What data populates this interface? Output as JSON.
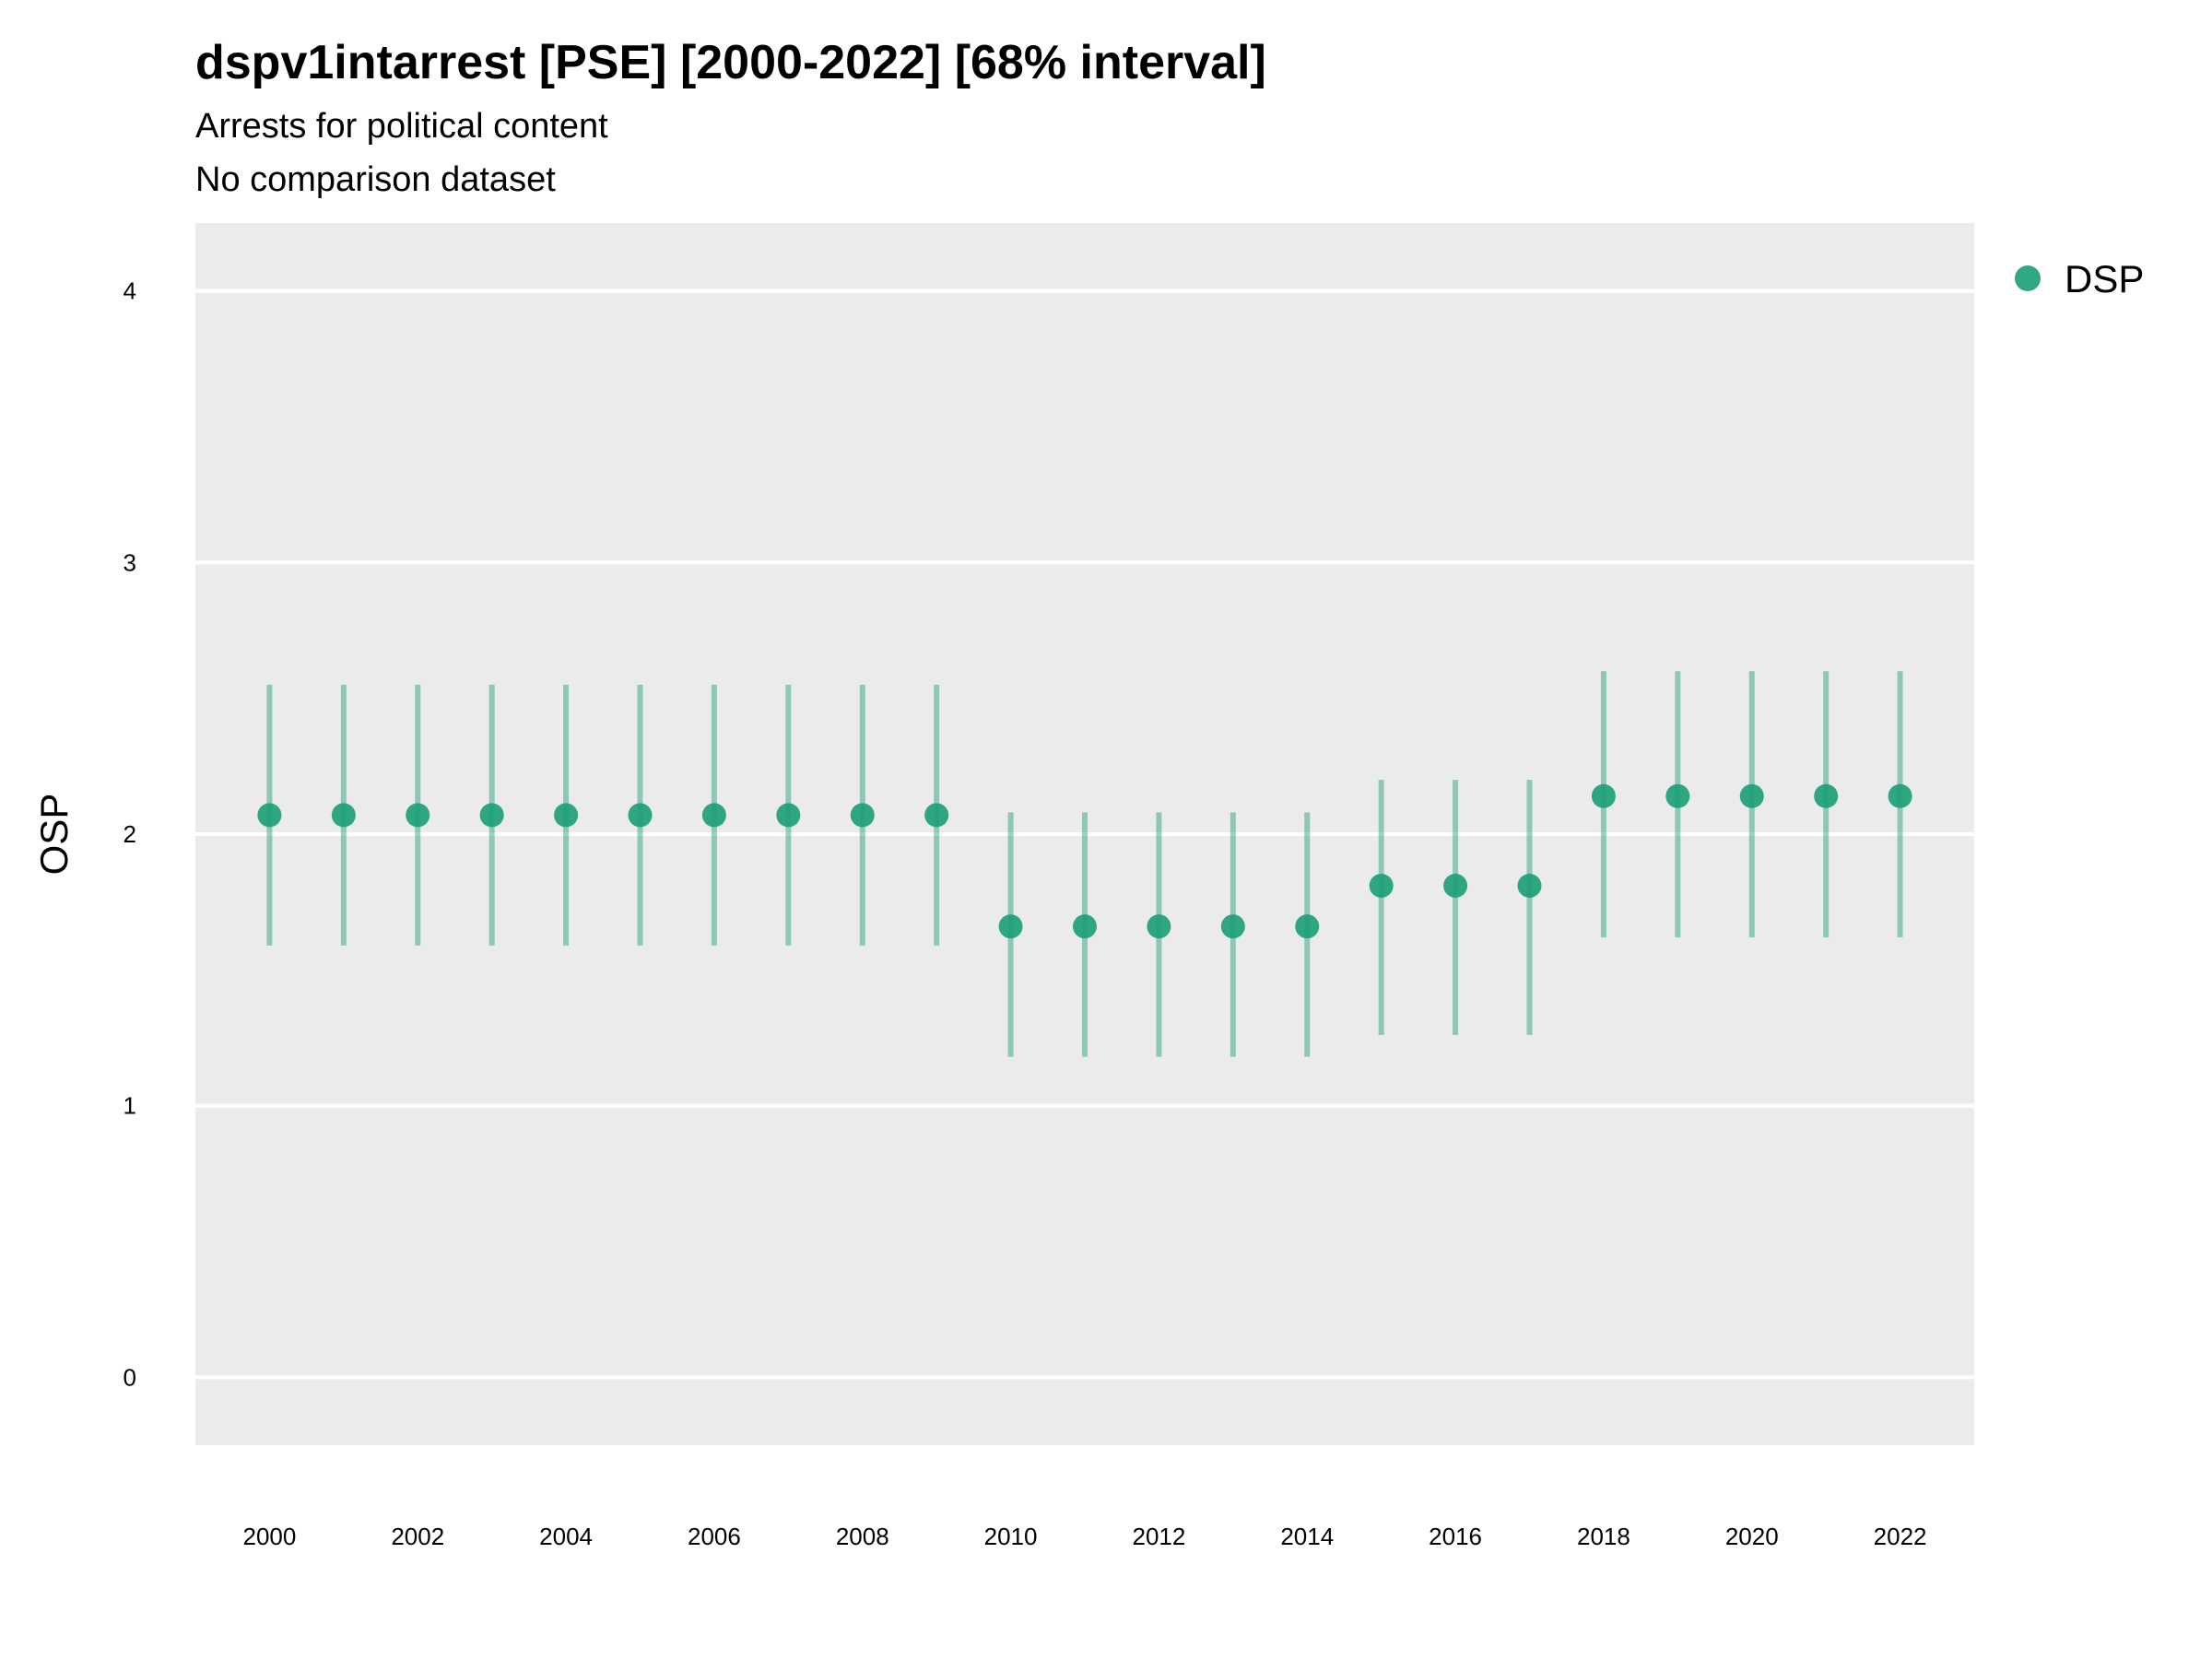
{
  "chart_data": {
    "type": "scatter",
    "title": "dspv1intarrest [PSE] [2000-2022] [68% interval]",
    "subtitle_lines": [
      "Arrests for political content",
      "No comparison dataset"
    ],
    "xlabel": "",
    "ylabel": "OSP",
    "ylim": [
      -0.25,
      4.25
    ],
    "xlim": [
      1999,
      2023
    ],
    "y_ticks": [
      0,
      1,
      2,
      3,
      4
    ],
    "x_ticks": [
      2000,
      2002,
      2004,
      2006,
      2008,
      2010,
      2012,
      2014,
      2016,
      2018,
      2020,
      2022
    ],
    "grid": "horizontal",
    "legend_position": "right-top",
    "background_color": "#EBEBEB",
    "series": [
      {
        "name": "DSP",
        "color": "#1B9E77",
        "points": [
          {
            "x": 2000,
            "y": 2.07,
            "low": 1.59,
            "high": 2.55
          },
          {
            "x": 2001,
            "y": 2.07,
            "low": 1.59,
            "high": 2.55
          },
          {
            "x": 2002,
            "y": 2.07,
            "low": 1.59,
            "high": 2.55
          },
          {
            "x": 2003,
            "y": 2.07,
            "low": 1.59,
            "high": 2.55
          },
          {
            "x": 2004,
            "y": 2.07,
            "low": 1.59,
            "high": 2.55
          },
          {
            "x": 2005,
            "y": 2.07,
            "low": 1.59,
            "high": 2.55
          },
          {
            "x": 2006,
            "y": 2.07,
            "low": 1.59,
            "high": 2.55
          },
          {
            "x": 2007,
            "y": 2.07,
            "low": 1.59,
            "high": 2.55
          },
          {
            "x": 2008,
            "y": 2.07,
            "low": 1.59,
            "high": 2.55
          },
          {
            "x": 2009,
            "y": 2.07,
            "low": 1.59,
            "high": 2.55
          },
          {
            "x": 2010,
            "y": 1.66,
            "low": 1.18,
            "high": 2.08
          },
          {
            "x": 2011,
            "y": 1.66,
            "low": 1.18,
            "high": 2.08
          },
          {
            "x": 2012,
            "y": 1.66,
            "low": 1.18,
            "high": 2.08
          },
          {
            "x": 2013,
            "y": 1.66,
            "low": 1.18,
            "high": 2.08
          },
          {
            "x": 2014,
            "y": 1.66,
            "low": 1.18,
            "high": 2.08
          },
          {
            "x": 2015,
            "y": 1.81,
            "low": 1.26,
            "high": 2.2
          },
          {
            "x": 2016,
            "y": 1.81,
            "low": 1.26,
            "high": 2.2
          },
          {
            "x": 2017,
            "y": 1.81,
            "low": 1.26,
            "high": 2.2
          },
          {
            "x": 2018,
            "y": 2.14,
            "low": 1.62,
            "high": 2.6
          },
          {
            "x": 2019,
            "y": 2.14,
            "low": 1.62,
            "high": 2.6
          },
          {
            "x": 2020,
            "y": 2.14,
            "low": 1.62,
            "high": 2.6
          },
          {
            "x": 2021,
            "y": 2.14,
            "low": 1.62,
            "high": 2.6
          },
          {
            "x": 2022,
            "y": 2.14,
            "low": 1.62,
            "high": 2.6
          }
        ]
      }
    ]
  }
}
